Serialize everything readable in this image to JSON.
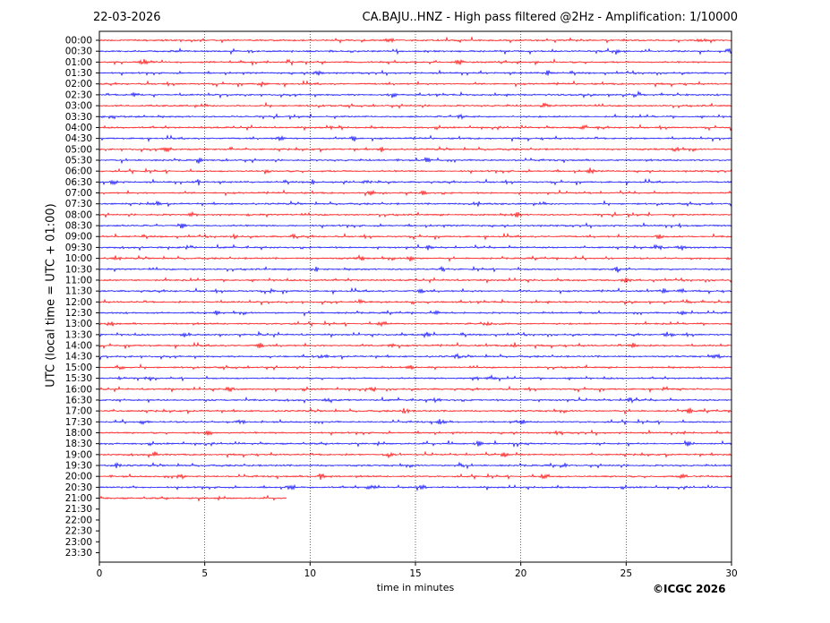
{
  "header": {
    "date": "22-03-2026",
    "title": "CA.BAJU..HNZ - High pass filtered @2Hz - Amplification: 1/10000"
  },
  "footer": {
    "copyright": "©ICGC 2026"
  },
  "colors": {
    "even_rows": "#ff0000",
    "odd_rows": "#0000ff",
    "grid": "#000000"
  },
  "chart_data": {
    "type": "line",
    "subtype": "helicorder",
    "xlabel": "time in minutes",
    "ylabel": "UTC (local time = UTC + 01:00)",
    "xlim": [
      0,
      30
    ],
    "xticks": [
      0,
      5,
      10,
      15,
      20,
      25,
      30
    ],
    "vertical_gridlines_at": [
      5,
      10,
      15,
      20,
      25
    ],
    "row_labels": [
      "00:00",
      "00:30",
      "01:00",
      "01:30",
      "02:00",
      "02:30",
      "03:00",
      "03:30",
      "04:00",
      "04:30",
      "05:00",
      "05:30",
      "06:00",
      "06:30",
      "07:00",
      "07:30",
      "08:00",
      "08:30",
      "09:00",
      "09:30",
      "10:00",
      "10:30",
      "11:00",
      "11:30",
      "12:00",
      "12:30",
      "13:00",
      "13:30",
      "14:00",
      "14:30",
      "15:00",
      "15:30",
      "16:00",
      "16:30",
      "17:00",
      "17:30",
      "18:00",
      "18:30",
      "19:00",
      "19:30",
      "20:00",
      "20:30",
      "21:00",
      "21:30",
      "22:00",
      "22:30",
      "23:00",
      "23:30"
    ],
    "row_colors": [
      "red",
      "blue"
    ],
    "trace_end_minutes": [
      30,
      30,
      30,
      30,
      30,
      30,
      30,
      30,
      30,
      30,
      30,
      30,
      30,
      30,
      30,
      30,
      30,
      30,
      30,
      30,
      30,
      30,
      30,
      30,
      30,
      30,
      30,
      30,
      30,
      30,
      30,
      30,
      30,
      30,
      30,
      30,
      30,
      30,
      30,
      30,
      30,
      30,
      8.9,
      0,
      0,
      0,
      0,
      0
    ],
    "bursts": [
      {
        "row": 0,
        "t": 13.8
      },
      {
        "row": 0,
        "t": 28.6
      },
      {
        "row": 1,
        "t": 24.5
      },
      {
        "row": 1,
        "t": 29.9
      },
      {
        "row": 2,
        "t": 2.1
      },
      {
        "row": 2,
        "t": 17.1
      },
      {
        "row": 3,
        "t": 10.4
      },
      {
        "row": 3,
        "t": 21.3
      },
      {
        "row": 4,
        "t": 7.7
      },
      {
        "row": 5,
        "t": 1.7
      },
      {
        "row": 5,
        "t": 13.9
      },
      {
        "row": 5,
        "t": 25.6
      },
      {
        "row": 6,
        "t": 21.2
      },
      {
        "row": 7,
        "t": 0.6
      },
      {
        "row": 7,
        "t": 17.1
      },
      {
        "row": 8,
        "t": 11.1
      },
      {
        "row": 8,
        "t": 22.9
      },
      {
        "row": 9,
        "t": 8.6
      },
      {
        "row": 9,
        "t": 12.1
      },
      {
        "row": 10,
        "t": 3.2
      },
      {
        "row": 10,
        "t": 13.4
      },
      {
        "row": 10,
        "t": 27.4
      },
      {
        "row": 11,
        "t": 4.7
      },
      {
        "row": 11,
        "t": 15.5
      },
      {
        "row": 12,
        "t": 7.9
      },
      {
        "row": 12,
        "t": 23.3
      },
      {
        "row": 13,
        "t": 0.7
      },
      {
        "row": 13,
        "t": 4.7
      },
      {
        "row": 13,
        "t": 10.2
      },
      {
        "row": 13,
        "t": 12.7
      },
      {
        "row": 14,
        "t": 12.9
      },
      {
        "row": 14,
        "t": 15.4
      },
      {
        "row": 15,
        "t": 2.7
      },
      {
        "row": 15,
        "t": 17.7
      },
      {
        "row": 16,
        "t": 4.4
      },
      {
        "row": 16,
        "t": 19.8
      },
      {
        "row": 17,
        "t": 3.9
      },
      {
        "row": 17,
        "t": 27.6
      },
      {
        "row": 18,
        "t": 6.4
      },
      {
        "row": 18,
        "t": 9.3
      },
      {
        "row": 18,
        "t": 26.6
      },
      {
        "row": 19,
        "t": 4.3
      },
      {
        "row": 19,
        "t": 15.6
      },
      {
        "row": 19,
        "t": 26.5
      },
      {
        "row": 19,
        "t": 27.6
      },
      {
        "row": 20,
        "t": 0.8
      },
      {
        "row": 20,
        "t": 12.4
      },
      {
        "row": 20,
        "t": 14.8
      },
      {
        "row": 21,
        "t": 10.3
      },
      {
        "row": 21,
        "t": 16.2
      },
      {
        "row": 21,
        "t": 24.6
      },
      {
        "row": 22,
        "t": 25.0
      },
      {
        "row": 23,
        "t": 8.2
      },
      {
        "row": 23,
        "t": 15.2
      },
      {
        "row": 23,
        "t": 26.8
      },
      {
        "row": 23,
        "t": 27.6
      },
      {
        "row": 24,
        "t": 12.4
      },
      {
        "row": 24,
        "t": 27.8
      },
      {
        "row": 25,
        "t": 5.5
      },
      {
        "row": 25,
        "t": 16.0
      },
      {
        "row": 25,
        "t": 27.6
      },
      {
        "row": 26,
        "t": 0.6
      },
      {
        "row": 26,
        "t": 13.4
      },
      {
        "row": 26,
        "t": 18.4
      },
      {
        "row": 27,
        "t": 4.1
      },
      {
        "row": 27,
        "t": 15.5
      },
      {
        "row": 27,
        "t": 27.0
      },
      {
        "row": 28,
        "t": 7.6
      },
      {
        "row": 28,
        "t": 13.9
      },
      {
        "row": 28,
        "t": 19.7
      },
      {
        "row": 28,
        "t": 25.4
      },
      {
        "row": 29,
        "t": 10.6
      },
      {
        "row": 29,
        "t": 17.0
      },
      {
        "row": 29,
        "t": 29.3
      },
      {
        "row": 30,
        "t": 1.0
      },
      {
        "row": 30,
        "t": 14.8
      },
      {
        "row": 31,
        "t": 1.1
      },
      {
        "row": 31,
        "t": 2.4
      },
      {
        "row": 31,
        "t": 17.8
      },
      {
        "row": 31,
        "t": 18.6
      },
      {
        "row": 32,
        "t": 6.2
      },
      {
        "row": 32,
        "t": 13.0
      },
      {
        "row": 32,
        "t": 26.9
      },
      {
        "row": 33,
        "t": 10.9
      },
      {
        "row": 33,
        "t": 16.0
      },
      {
        "row": 33,
        "t": 25.2
      },
      {
        "row": 34,
        "t": 14.5
      },
      {
        "row": 34,
        "t": 28.0
      },
      {
        "row": 35,
        "t": 2.1
      },
      {
        "row": 35,
        "t": 6.7
      },
      {
        "row": 35,
        "t": 16.2
      },
      {
        "row": 35,
        "t": 20.0
      },
      {
        "row": 36,
        "t": 5.2
      },
      {
        "row": 36,
        "t": 21.8
      },
      {
        "row": 36,
        "t": 27.6
      },
      {
        "row": 37,
        "t": 18.0
      },
      {
        "row": 37,
        "t": 27.9
      },
      {
        "row": 38,
        "t": 2.6
      },
      {
        "row": 38,
        "t": 13.7
      },
      {
        "row": 38,
        "t": 19.2
      },
      {
        "row": 39,
        "t": 0.8
      },
      {
        "row": 39,
        "t": 17.1
      },
      {
        "row": 39,
        "t": 22.0
      },
      {
        "row": 40,
        "t": 3.9
      },
      {
        "row": 40,
        "t": 10.5
      },
      {
        "row": 40,
        "t": 21.1
      },
      {
        "row": 40,
        "t": 27.7
      },
      {
        "row": 41,
        "t": 9.1
      },
      {
        "row": 41,
        "t": 12.9
      },
      {
        "row": 41,
        "t": 15.4
      }
    ]
  }
}
